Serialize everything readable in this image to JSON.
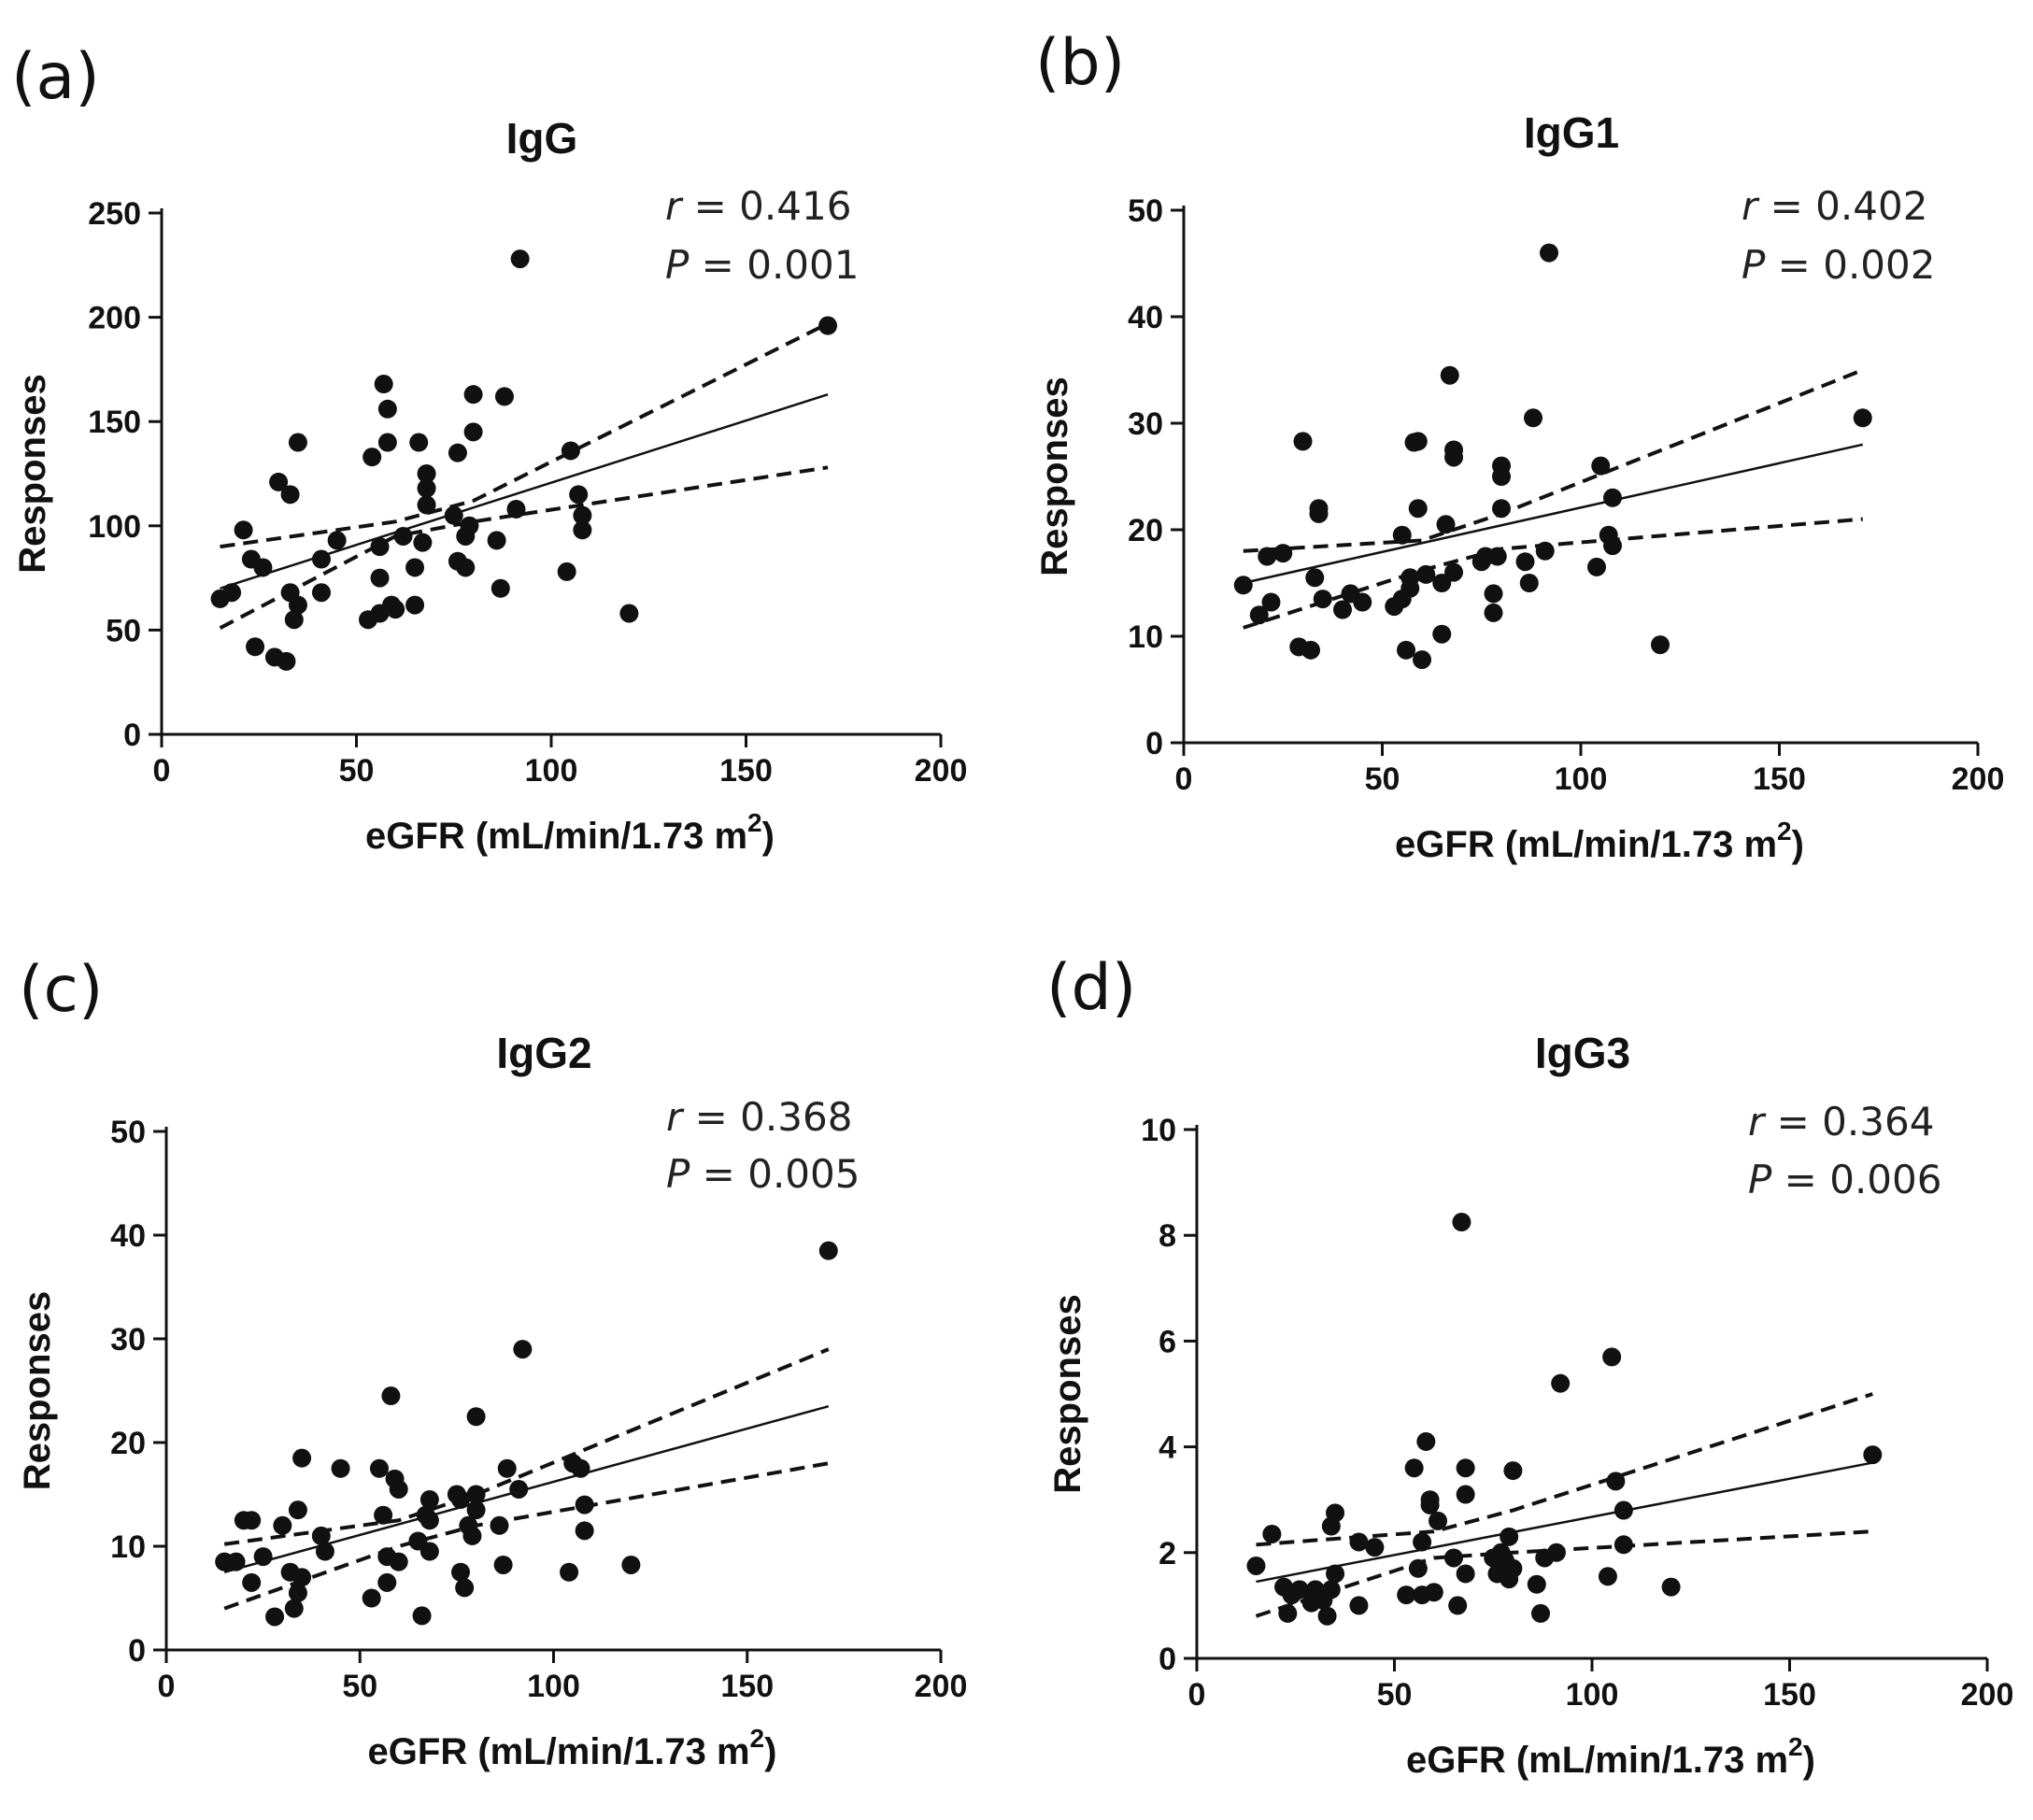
{
  "chart_data": [
    {
      "type": "scatter",
      "panel": "(a)",
      "title": "IgG",
      "xlabel": "eGFR (mL/min/1.73 m",
      "xlabel_sup": "2",
      "xlabel_close": ")",
      "ylabel": "Responses",
      "xlim": [
        0,
        200
      ],
      "ylim": [
        0,
        250
      ],
      "xticks": [
        "0",
        "50",
        "100",
        "150",
        "200"
      ],
      "yticks": [
        "0",
        "50",
        "100",
        "150",
        "200",
        "250"
      ],
      "r_label": "r",
      "r_value": " = 0.416",
      "p_label": "P",
      "p_value": " = 0.001",
      "fit": {
        "x": [
          15,
          171
        ],
        "y": [
          70,
          163
        ]
      },
      "ci_upper": {
        "x": [
          15,
          60,
          80,
          171
        ],
        "y": [
          90,
          102,
          112,
          197
        ]
      },
      "ci_lower": {
        "x": [
          15,
          60,
          80,
          171
        ],
        "y": [
          51,
          95,
          102,
          128
        ]
      },
      "points": [
        [
          15,
          65
        ],
        [
          18,
          68
        ],
        [
          21,
          98
        ],
        [
          23,
          84
        ],
        [
          24,
          42
        ],
        [
          26,
          80
        ],
        [
          29,
          37
        ],
        [
          30,
          121
        ],
        [
          32,
          35
        ],
        [
          33,
          115
        ],
        [
          33,
          68
        ],
        [
          34,
          55
        ],
        [
          35,
          140
        ],
        [
          35,
          62
        ],
        [
          41,
          68
        ],
        [
          41,
          84
        ],
        [
          45,
          93
        ],
        [
          53,
          55
        ],
        [
          54,
          133
        ],
        [
          56,
          58
        ],
        [
          56,
          90
        ],
        [
          56,
          75
        ],
        [
          57,
          168
        ],
        [
          58,
          156
        ],
        [
          58,
          140
        ],
        [
          59,
          62
        ],
        [
          60,
          60
        ],
        [
          62,
          95
        ],
        [
          65,
          62
        ],
        [
          65,
          80
        ],
        [
          66,
          140
        ],
        [
          67,
          92
        ],
        [
          68,
          125
        ],
        [
          68,
          118
        ],
        [
          68,
          110
        ],
        [
          75,
          105
        ],
        [
          76,
          83
        ],
        [
          76,
          135
        ],
        [
          78,
          80
        ],
        [
          78,
          95
        ],
        [
          79,
          100
        ],
        [
          80,
          163
        ],
        [
          80,
          145
        ],
        [
          86,
          93
        ],
        [
          87,
          70
        ],
        [
          88,
          162
        ],
        [
          91,
          108
        ],
        [
          92,
          228
        ],
        [
          104,
          78
        ],
        [
          105,
          136
        ],
        [
          107,
          115
        ],
        [
          108,
          105
        ],
        [
          108,
          98
        ],
        [
          120,
          58
        ],
        [
          171,
          196
        ]
      ]
    },
    {
      "type": "scatter",
      "panel": "(b)",
      "title": "IgG1",
      "xlabel": "eGFR (mL/min/1.73 m",
      "xlabel_sup": "2",
      "xlabel_close": ")",
      "ylabel": "Responses",
      "xlim": [
        0,
        200
      ],
      "ylim": [
        0,
        50
      ],
      "xticks": [
        "0",
        "50",
        "100",
        "150",
        "200"
      ],
      "yticks": [
        "0",
        "10",
        "20",
        "30",
        "40",
        "50"
      ],
      "r_label": "r",
      "r_value": " = 0.402",
      "p_label": "P",
      "p_value": " = 0.002",
      "fit": {
        "x": [
          15,
          171
        ],
        "y": [
          15,
          28
        ]
      },
      "ci_upper": {
        "x": [
          15,
          60,
          80,
          171
        ],
        "y": [
          18,
          19,
          21.5,
          35
        ]
      },
      "ci_lower": {
        "x": [
          15,
          60,
          80,
          171
        ],
        "y": [
          10.8,
          16.2,
          18.2,
          21
        ]
      },
      "points": [
        [
          15,
          14.8
        ],
        [
          19,
          12
        ],
        [
          21,
          17.5
        ],
        [
          22,
          13.2
        ],
        [
          25,
          17.8
        ],
        [
          29,
          9
        ],
        [
          30,
          28.3
        ],
        [
          32,
          8.7
        ],
        [
          33,
          15.5
        ],
        [
          34,
          21.5
        ],
        [
          34,
          22
        ],
        [
          35,
          13.5
        ],
        [
          40,
          12.5
        ],
        [
          42,
          14
        ],
        [
          45,
          13.2
        ],
        [
          53,
          12.8
        ],
        [
          55,
          19.5
        ],
        [
          55,
          13.5
        ],
        [
          56,
          8.7
        ],
        [
          57,
          15.5
        ],
        [
          57,
          14.5
        ],
        [
          58,
          28.2
        ],
        [
          59,
          28.3
        ],
        [
          59,
          22
        ],
        [
          60,
          7.8
        ],
        [
          61,
          15.8
        ],
        [
          65,
          10.2
        ],
        [
          65,
          15
        ],
        [
          66,
          20.5
        ],
        [
          67,
          34.5
        ],
        [
          68,
          27.5
        ],
        [
          68,
          26.8
        ],
        [
          68,
          16
        ],
        [
          75,
          17
        ],
        [
          76,
          17.5
        ],
        [
          78,
          12.2
        ],
        [
          78,
          14
        ],
        [
          79,
          17.5
        ],
        [
          80,
          26
        ],
        [
          80,
          25
        ],
        [
          80,
          22
        ],
        [
          86,
          17
        ],
        [
          87,
          15
        ],
        [
          88,
          30.5
        ],
        [
          91,
          18
        ],
        [
          92,
          46
        ],
        [
          104,
          16.5
        ],
        [
          105,
          26
        ],
        [
          107,
          19.5
        ],
        [
          108,
          23
        ],
        [
          108,
          18.5
        ],
        [
          120,
          9.2
        ],
        [
          171,
          30.5
        ]
      ]
    },
    {
      "type": "scatter",
      "panel": "(c)",
      "title": "IgG2",
      "xlabel": "eGFR (mL/min/1.73 m",
      "xlabel_sup": "2",
      "xlabel_close": ")",
      "ylabel": "Responses",
      "xlim": [
        0,
        200
      ],
      "ylim": [
        0,
        50
      ],
      "xticks": [
        "0",
        "50",
        "100",
        "150",
        "200"
      ],
      "yticks": [
        "0",
        "10",
        "20",
        "30",
        "40",
        "50"
      ],
      "r_label": "r",
      "r_value": " = 0.368",
      "p_label": "P",
      "p_value": " = 0.005",
      "fit": {
        "x": [
          15,
          171
        ],
        "y": [
          7.5,
          23.5
        ]
      },
      "ci_upper": {
        "x": [
          15,
          60,
          80,
          171
        ],
        "y": [
          10.2,
          12.5,
          15,
          29
        ]
      },
      "ci_lower": {
        "x": [
          15,
          60,
          80,
          171
        ],
        "y": [
          4,
          10,
          12,
          18
        ]
      },
      "points": [
        [
          15,
          8.5
        ],
        [
          18,
          8.5
        ],
        [
          20,
          12.5
        ],
        [
          22,
          12.5
        ],
        [
          22,
          6.5
        ],
        [
          25,
          9
        ],
        [
          28,
          3.2
        ],
        [
          30,
          12
        ],
        [
          32,
          7.5
        ],
        [
          33,
          4
        ],
        [
          34,
          13.5
        ],
        [
          34,
          5.5
        ],
        [
          35,
          18.5
        ],
        [
          35,
          7
        ],
        [
          40,
          11
        ],
        [
          41,
          9.5
        ],
        [
          45,
          17.5
        ],
        [
          53,
          5
        ],
        [
          55,
          17.5
        ],
        [
          56,
          13
        ],
        [
          57,
          9
        ],
        [
          57,
          6.5
        ],
        [
          58,
          24.5
        ],
        [
          59,
          16.5
        ],
        [
          60,
          15.5
        ],
        [
          60,
          8.5
        ],
        [
          65,
          10.5
        ],
        [
          66,
          3.3
        ],
        [
          67,
          13
        ],
        [
          68,
          14.5
        ],
        [
          68,
          12.5
        ],
        [
          68,
          9.5
        ],
        [
          75,
          15
        ],
        [
          76,
          7.5
        ],
        [
          76,
          14.5
        ],
        [
          77,
          6
        ],
        [
          78,
          12
        ],
        [
          79,
          11
        ],
        [
          80,
          22.5
        ],
        [
          80,
          15
        ],
        [
          80,
          13.5
        ],
        [
          86,
          12
        ],
        [
          87,
          8.2
        ],
        [
          88,
          17.5
        ],
        [
          91,
          15.5
        ],
        [
          92,
          29
        ],
        [
          104,
          7.5
        ],
        [
          105,
          18
        ],
        [
          107,
          17.5
        ],
        [
          108,
          11.5
        ],
        [
          108,
          14
        ],
        [
          120,
          8.2
        ],
        [
          171,
          38.5
        ]
      ]
    },
    {
      "type": "scatter",
      "panel": "(d)",
      "title": "IgG3",
      "xlabel": "eGFR (mL/min/1.73 m",
      "xlabel_sup": "2",
      "xlabel_close": ")",
      "ylabel": "Responses",
      "xlim": [
        0,
        200
      ],
      "ylim": [
        0,
        10
      ],
      "xticks": [
        "0",
        "50",
        "100",
        "150",
        "200"
      ],
      "yticks": [
        "0",
        "2",
        "4",
        "6",
        "8",
        "10"
      ],
      "r_label": "r",
      "r_value": " = 0.364",
      "p_label": "P",
      "p_value": " = 0.006",
      "fit": {
        "x": [
          15,
          171
        ],
        "y": [
          1.45,
          3.7
        ]
      },
      "ci_upper": {
        "x": [
          15,
          60,
          80,
          171
        ],
        "y": [
          2.15,
          2.4,
          2.8,
          5
        ]
      },
      "ci_lower": {
        "x": [
          15,
          60,
          80,
          171
        ],
        "y": [
          0.8,
          1.9,
          2.0,
          2.4
        ]
      },
      "points": [
        [
          15,
          1.75
        ],
        [
          19,
          2.35
        ],
        [
          22,
          1.35
        ],
        [
          23,
          0.85
        ],
        [
          24,
          1.2
        ],
        [
          26,
          1.3
        ],
        [
          29,
          1.05
        ],
        [
          30,
          1.3
        ],
        [
          32,
          1.1
        ],
        [
          33,
          0.8
        ],
        [
          34,
          1.3
        ],
        [
          34,
          2.5
        ],
        [
          35,
          2.75
        ],
        [
          35,
          1.6
        ],
        [
          41,
          1.0
        ],
        [
          41,
          2.2
        ],
        [
          45,
          2.1
        ],
        [
          53,
          1.2
        ],
        [
          55,
          3.6
        ],
        [
          56,
          1.7
        ],
        [
          57,
          1.2
        ],
        [
          57,
          2.2
        ],
        [
          58,
          4.1
        ],
        [
          59,
          2.9
        ],
        [
          59,
          3.0
        ],
        [
          60,
          1.25
        ],
        [
          61,
          2.6
        ],
        [
          65,
          1.9
        ],
        [
          66,
          1.0
        ],
        [
          67,
          8.25
        ],
        [
          68,
          3.6
        ],
        [
          68,
          3.1
        ],
        [
          68,
          1.6
        ],
        [
          75,
          1.9
        ],
        [
          76,
          1.6
        ],
        [
          77,
          2.0
        ],
        [
          78,
          1.85
        ],
        [
          79,
          1.5
        ],
        [
          79,
          2.3
        ],
        [
          80,
          3.55
        ],
        [
          80,
          1.7
        ],
        [
          86,
          1.4
        ],
        [
          87,
          0.85
        ],
        [
          88,
          1.9
        ],
        [
          91,
          2.0
        ],
        [
          92,
          5.2
        ],
        [
          104,
          1.55
        ],
        [
          105,
          5.7
        ],
        [
          106,
          3.35
        ],
        [
          108,
          2.8
        ],
        [
          108,
          2.15
        ],
        [
          120,
          1.35
        ],
        [
          171,
          3.85
        ]
      ]
    }
  ]
}
